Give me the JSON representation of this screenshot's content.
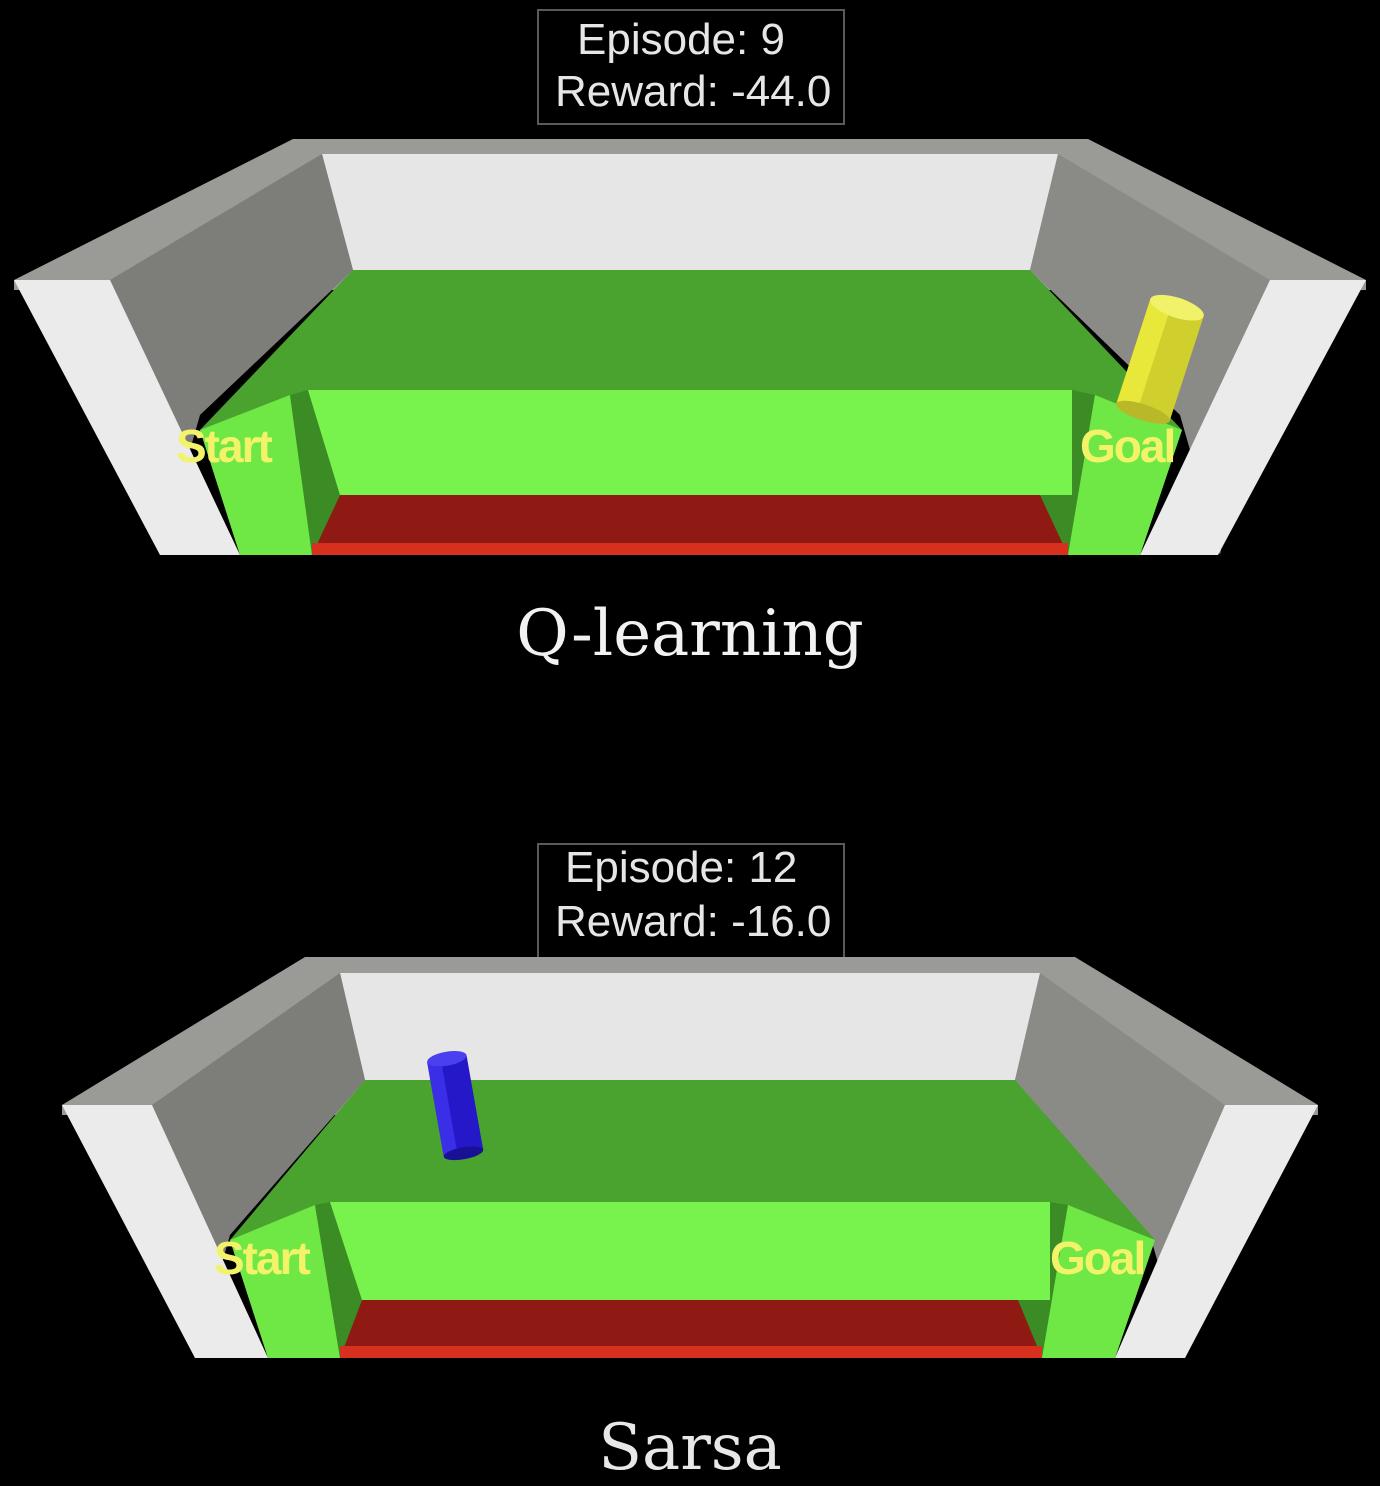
{
  "panels": [
    {
      "algorithm": "Q-learning",
      "episode_text": "Episode: 9",
      "reward_text": "Reward: -44.0",
      "start_label": "Start",
      "goal_label": "Goal",
      "agent_color": "#e8e83a",
      "agent_shape": "cylinder"
    },
    {
      "algorithm": "Sarsa",
      "episode_text": "Episode: 12",
      "reward_text": "Reward: -16.0",
      "start_label": "Start",
      "goal_label": "Goal",
      "agent_color": "#2a1fd6",
      "agent_shape": "cylinder"
    }
  ],
  "colors": {
    "background": "#000000",
    "floor_green": "#4aa32e",
    "path_green": "#76f04c",
    "cliff_red": "#8f1a14",
    "wall_light": "#e6e6e6",
    "wall_gray": "#8a8a87",
    "label_yellow": "#f3f36a"
  }
}
